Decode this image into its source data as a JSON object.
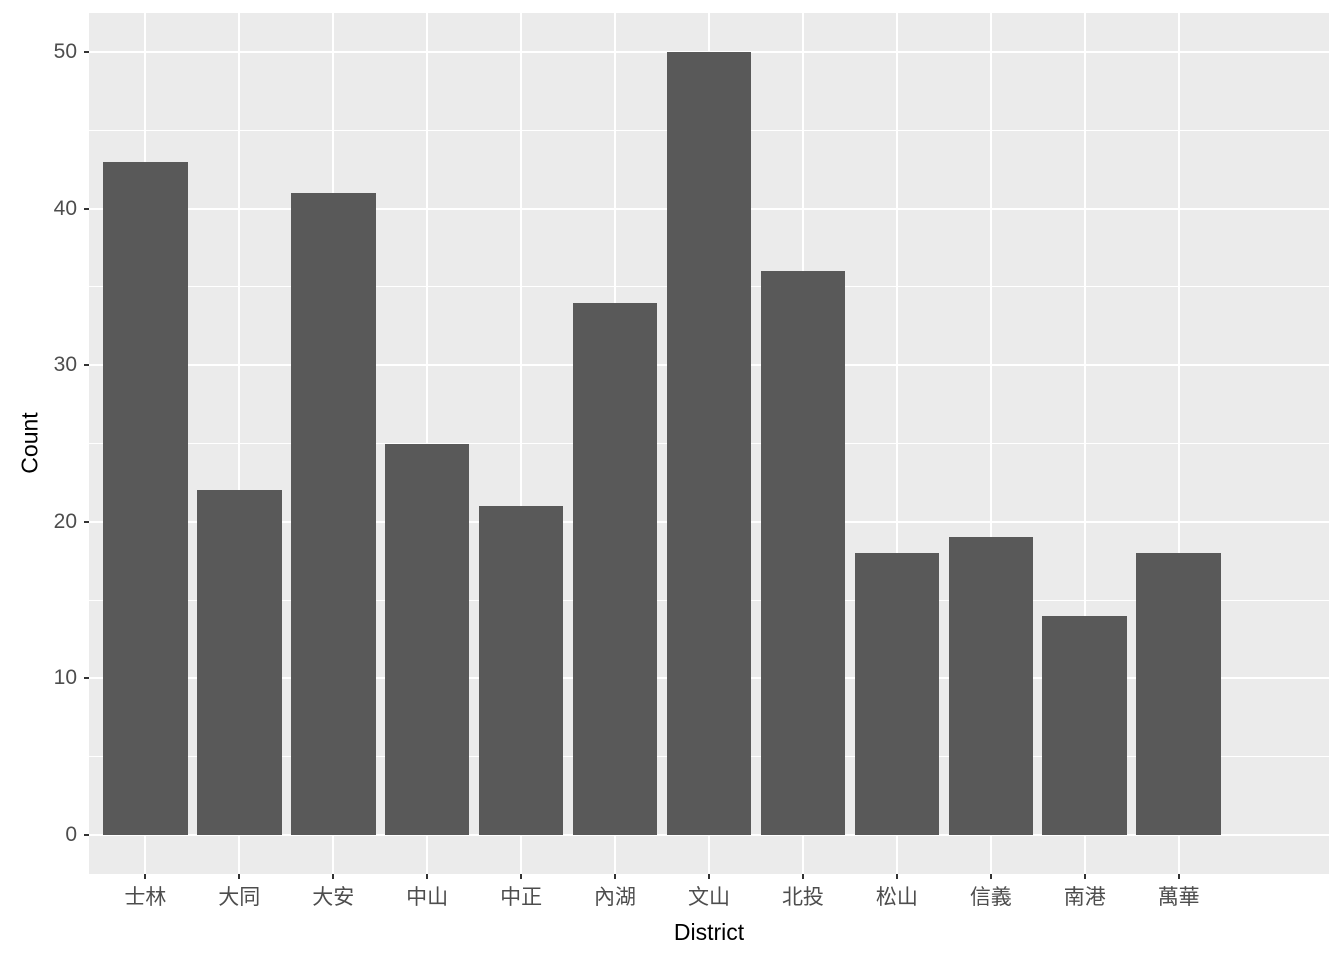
{
  "chart_data": {
    "type": "bar",
    "title": "",
    "xlabel": "District",
    "ylabel": "Count",
    "categories": [
      "士林",
      "大同",
      "大安",
      "中山",
      "中正",
      "內湖",
      "文山",
      "北投",
      "松山",
      "信義",
      "南港",
      "萬華"
    ],
    "values": [
      43,
      22,
      41,
      25,
      21,
      34,
      50,
      36,
      18,
      19,
      14,
      18
    ],
    "y_ticks": [
      0,
      10,
      20,
      30,
      40,
      50
    ],
    "y_minor_ticks": [
      5,
      15,
      25,
      35,
      45
    ],
    "ylim": [
      -2.5,
      52.5
    ],
    "legend_position": "none",
    "grid": {
      "horizontal_major": true,
      "horizontal_minor": true,
      "vertical_major_at_categories": true
    },
    "style": "ggplot2-theme-gray",
    "colors": {
      "bar_fill": "#595959",
      "panel_background": "#EBEBEB",
      "gridline": "#FFFFFF",
      "tick_label": "#4D4D4D",
      "axis_title": "#000000",
      "tick_mark": "#333333",
      "outer_background": "#FFFFFF"
    }
  }
}
